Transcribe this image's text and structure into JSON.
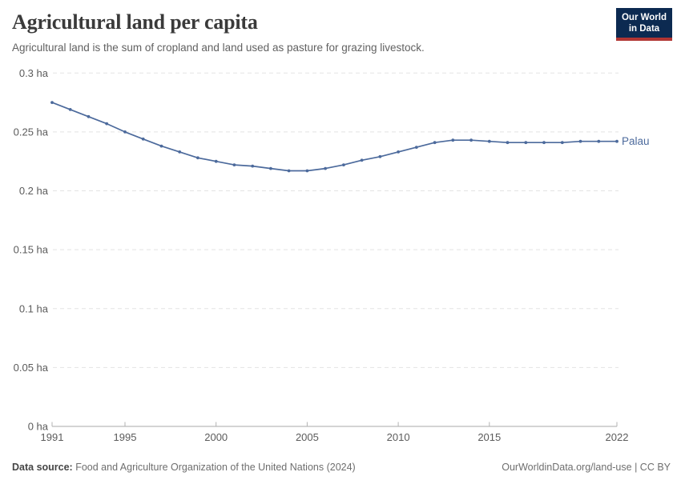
{
  "header": {
    "title": "Agricultural land per capita",
    "subtitle": "Agricultural land is the sum of cropland and land used as pasture for grazing livestock."
  },
  "logo": {
    "line1": "Our World",
    "line2": "in Data"
  },
  "colors": {
    "line": "#4c6a9c",
    "logo_bg": "#0c2a51",
    "logo_accent": "#b13533",
    "grid": "#e3e3e3",
    "axis": "#a8a8a8",
    "tick": "#b3b3b3",
    "tick_text": "#5b5b5b"
  },
  "chart_data": {
    "type": "line",
    "title": "Agricultural land per capita",
    "unit": "ha",
    "xlabel": "",
    "ylabel": "",
    "ylim": [
      0,
      0.3
    ],
    "grid": "horizontal-dashed",
    "legend_position": "end-of-line",
    "x": [
      1991,
      1992,
      1993,
      1994,
      1995,
      1996,
      1997,
      1998,
      1999,
      2000,
      2001,
      2002,
      2003,
      2004,
      2005,
      2006,
      2007,
      2008,
      2009,
      2010,
      2011,
      2012,
      2013,
      2014,
      2015,
      2016,
      2017,
      2018,
      2019,
      2020,
      2021,
      2022
    ],
    "series": [
      {
        "name": "Palau",
        "color": "#4c6a9c",
        "values": [
          0.275,
          0.269,
          0.263,
          0.257,
          0.25,
          0.244,
          0.238,
          0.233,
          0.228,
          0.225,
          0.222,
          0.221,
          0.219,
          0.217,
          0.217,
          0.219,
          0.222,
          0.226,
          0.229,
          0.233,
          0.237,
          0.241,
          0.243,
          0.243,
          0.242,
          0.241,
          0.241,
          0.241,
          0.241,
          0.242,
          0.242,
          0.242
        ]
      }
    ],
    "yticks": [
      0,
      0.05,
      0.1,
      0.15,
      0.2,
      0.25,
      0.3
    ],
    "ytick_labels": [
      "0 ha",
      "0.05 ha",
      "0.1 ha",
      "0.15 ha",
      "0.2 ha",
      "0.25 ha",
      "0.3 ha"
    ],
    "xticks": [
      1991,
      1995,
      2000,
      2005,
      2010,
      2015,
      2022
    ]
  },
  "footer": {
    "source_label": "Data source:",
    "source_text": " Food and Agriculture Organization of the United Nations (2024)",
    "link_text": "OurWorldinData.org/land-use",
    "separator": " | ",
    "license_text": "CC BY"
  }
}
